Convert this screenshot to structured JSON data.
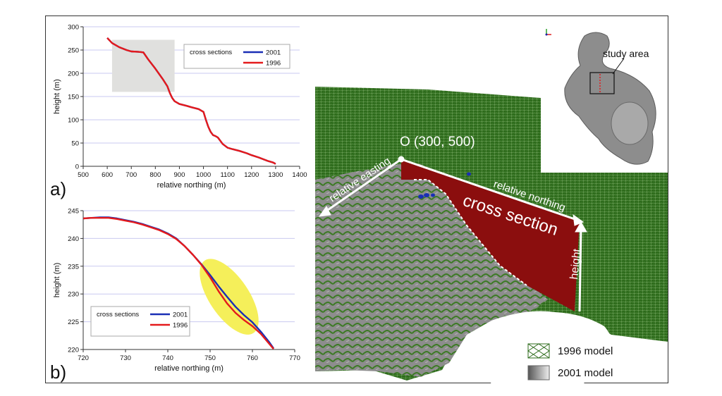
{
  "panels": {
    "a": "a)",
    "b": "b)"
  },
  "chart_data": [
    {
      "type": "line",
      "xlabel": "relative northing (m)",
      "ylabel": "height (m)",
      "xlim": [
        500,
        1400
      ],
      "ylim": [
        0,
        300
      ],
      "xticks": [
        "500",
        "600",
        "700",
        "800",
        "900",
        "1000",
        "1100",
        "1200",
        "1300",
        "1400"
      ],
      "yticks": [
        "0",
        "50",
        "100",
        "150",
        "200",
        "250",
        "300"
      ],
      "grid": "horizontal",
      "legend": {
        "title": "cross sections",
        "placement": "top-right"
      },
      "highlight_box": {
        "x": [
          620,
          880
        ],
        "y": [
          160,
          272
        ],
        "color": "#e0e0de"
      },
      "series": [
        {
          "name": "2001",
          "color": "#1a2fb5",
          "x": [
            600,
            620,
            650,
            680,
            700,
            730,
            750,
            770,
            800,
            830,
            850,
            860,
            870,
            880,
            900,
            930,
            950,
            980,
            1000,
            1010,
            1020,
            1030,
            1040,
            1050,
            1060,
            1080,
            1100,
            1120,
            1150,
            1180,
            1200,
            1230,
            1250,
            1270,
            1290,
            1300
          ],
          "y": [
            276,
            265,
            256,
            250,
            247,
            246,
            245,
            230,
            210,
            188,
            172,
            158,
            147,
            140,
            134,
            130,
            127,
            123,
            117,
            100,
            85,
            74,
            67,
            65,
            62,
            48,
            40,
            37,
            33,
            28,
            24,
            19,
            15,
            11,
            8,
            5
          ]
        },
        {
          "name": "1996",
          "color": "#e41a1c",
          "x": [
            600,
            620,
            650,
            680,
            700,
            730,
            750,
            770,
            800,
            830,
            850,
            860,
            870,
            880,
            900,
            930,
            950,
            980,
            1000,
            1010,
            1020,
            1030,
            1040,
            1050,
            1060,
            1080,
            1100,
            1120,
            1150,
            1180,
            1200,
            1230,
            1250,
            1270,
            1290,
            1300
          ],
          "y": [
            276,
            265,
            256,
            250,
            247,
            246,
            245,
            230,
            210,
            188,
            172,
            158,
            147,
            140,
            134,
            130,
            127,
            123,
            117,
            100,
            85,
            74,
            67,
            65,
            62,
            48,
            40,
            37,
            33,
            28,
            24,
            19,
            15,
            11,
            8,
            5
          ]
        }
      ]
    },
    {
      "type": "line",
      "xlabel": "relative northing (m)",
      "ylabel": "height (m)",
      "xlim": [
        720,
        770
      ],
      "ylim": [
        220,
        245
      ],
      "xticks": [
        "720",
        "730",
        "740",
        "750",
        "760",
        "770"
      ],
      "yticks": [
        "220",
        "225",
        "230",
        "235",
        "240",
        "245"
      ],
      "grid": "horizontal",
      "legend": {
        "title": "cross sections",
        "placement": "bottom-left"
      },
      "highlight_ellipse": {
        "cx": 754.5,
        "cy": 229.5,
        "color": "#f5ef5a"
      },
      "series": [
        {
          "name": "2001",
          "color": "#1a2fb5",
          "x": [
            720,
            722,
            724,
            726,
            728,
            730,
            732,
            734,
            736,
            738,
            740,
            742,
            744,
            746,
            748,
            750,
            752,
            754,
            756,
            758,
            760,
            762,
            764,
            765
          ],
          "y": [
            243.6,
            243.7,
            243.8,
            243.8,
            243.6,
            243.3,
            243.0,
            242.6,
            242.1,
            241.6,
            240.9,
            240.0,
            238.6,
            237.0,
            235.3,
            233.4,
            231.4,
            229.5,
            227.7,
            226.2,
            224.9,
            223.2,
            221.3,
            220.2
          ]
        },
        {
          "name": "1996",
          "color": "#e41a1c",
          "x": [
            720,
            722,
            724,
            726,
            728,
            730,
            732,
            734,
            736,
            738,
            740,
            742,
            744,
            746,
            748,
            750,
            752,
            754,
            756,
            758,
            760,
            762,
            764,
            765
          ],
          "y": [
            243.6,
            243.7,
            243.7,
            243.7,
            243.5,
            243.2,
            242.9,
            242.5,
            242.0,
            241.5,
            240.8,
            239.9,
            238.6,
            237.0,
            235.2,
            233.0,
            230.5,
            228.3,
            226.6,
            225.3,
            224.2,
            222.8,
            221.0,
            220.1
          ]
        }
      ]
    }
  ],
  "scene": {
    "origin_label": "O (300, 500)",
    "axis_easting": "relative easting",
    "axis_northing": "relative northing",
    "axis_height": "height",
    "section_label": "cross section",
    "inset_label": "study area",
    "legend": [
      "1996 model",
      "2001 model"
    ],
    "colors": {
      "mesh": "#2f6e1d",
      "section": "#8b0e0e",
      "terrain": "#8a8a8a"
    }
  }
}
